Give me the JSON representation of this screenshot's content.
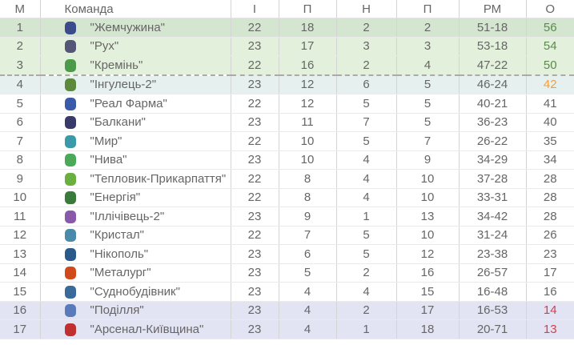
{
  "headers": [
    "М",
    "Команда",
    "І",
    "П",
    "Н",
    "П",
    "РМ",
    "О"
  ],
  "colors": {
    "champ": "#d5e6d0",
    "promo": "#e3f1dc",
    "playoff": "#e5f0ef",
    "releg": "#e2e3f3",
    "pts_green": "#5a8a4a",
    "pts_orange": "#f0a040",
    "pts_red": "#d04050"
  },
  "rows": [
    {
      "pos": "1",
      "team": "\"Жемчужина\"",
      "p": "22",
      "w": "18",
      "d": "2",
      "l": "2",
      "gd": "51-18",
      "pts": "56",
      "zone": "champ",
      "logo": "#3a4a8a"
    },
    {
      "pos": "2",
      "team": "\"Рух\"",
      "p": "23",
      "w": "17",
      "d": "3",
      "l": "3",
      "gd": "53-18",
      "pts": "54",
      "zone": "promo",
      "logo": "#555577"
    },
    {
      "pos": "3",
      "team": "\"Кремінь\"",
      "p": "22",
      "w": "16",
      "d": "2",
      "l": "4",
      "gd": "47-22",
      "pts": "50",
      "zone": "promo",
      "logo": "#4a9a4a"
    },
    {
      "pos": "4",
      "team": "\"Інгулець-2\"",
      "p": "23",
      "w": "12",
      "d": "6",
      "l": "5",
      "gd": "46-24",
      "pts": "42",
      "zone": "play",
      "logo": "#5a8a3a"
    },
    {
      "pos": "5",
      "team": "\"Реал Фарма\"",
      "p": "22",
      "w": "12",
      "d": "5",
      "l": "5",
      "gd": "40-21",
      "pts": "41",
      "zone": "",
      "logo": "#3a5aaa"
    },
    {
      "pos": "6",
      "team": "\"Балкани\"",
      "p": "23",
      "w": "11",
      "d": "7",
      "l": "5",
      "gd": "36-23",
      "pts": "40",
      "zone": "",
      "logo": "#3a3a6a"
    },
    {
      "pos": "7",
      "team": "\"Мир\"",
      "p": "22",
      "w": "10",
      "d": "5",
      "l": "7",
      "gd": "26-22",
      "pts": "35",
      "zone": "",
      "logo": "#3a9aaa"
    },
    {
      "pos": "8",
      "team": "\"Нива\"",
      "p": "23",
      "w": "10",
      "d": "4",
      "l": "9",
      "gd": "34-29",
      "pts": "34",
      "zone": "",
      "logo": "#4aaa5a"
    },
    {
      "pos": "9",
      "team": "\"Тепловик-Прикарпаття\"",
      "p": "22",
      "w": "8",
      "d": "4",
      "l": "10",
      "gd": "37-28",
      "pts": "28",
      "zone": "",
      "logo": "#6ab040"
    },
    {
      "pos": "10",
      "team": "\"Енергія\"",
      "p": "22",
      "w": "8",
      "d": "4",
      "l": "10",
      "gd": "33-31",
      "pts": "28",
      "zone": "",
      "logo": "#3a7a3a"
    },
    {
      "pos": "11",
      "team": "\"Іллічівець-2\"",
      "p": "23",
      "w": "9",
      "d": "1",
      "l": "13",
      "gd": "34-42",
      "pts": "28",
      "zone": "",
      "logo": "#8a5aaa"
    },
    {
      "pos": "12",
      "team": "\"Кристал\"",
      "p": "22",
      "w": "7",
      "d": "5",
      "l": "10",
      "gd": "31-24",
      "pts": "26",
      "zone": "",
      "logo": "#4a8aaa"
    },
    {
      "pos": "13",
      "team": "\"Нікополь\"",
      "p": "23",
      "w": "6",
      "d": "5",
      "l": "12",
      "gd": "23-38",
      "pts": "23",
      "zone": "",
      "logo": "#2a5a8a"
    },
    {
      "pos": "14",
      "team": "\"Металург\"",
      "p": "23",
      "w": "5",
      "d": "2",
      "l": "16",
      "gd": "26-57",
      "pts": "17",
      "zone": "",
      "logo": "#d04a1a"
    },
    {
      "pos": "15",
      "team": "\"Суднобудівник\"",
      "p": "23",
      "w": "4",
      "d": "4",
      "l": "15",
      "gd": "16-48",
      "pts": "16",
      "zone": "",
      "logo": "#3a6a9a"
    },
    {
      "pos": "16",
      "team": "\"Поділля\"",
      "p": "23",
      "w": "4",
      "d": "2",
      "l": "17",
      "gd": "16-53",
      "pts": "14",
      "zone": "releg",
      "logo": "#5a7aba"
    },
    {
      "pos": "17",
      "team": "\"Арсенал-Київщина\"",
      "p": "23",
      "w": "4",
      "d": "1",
      "l": "18",
      "gd": "20-71",
      "pts": "13",
      "zone": "releg",
      "logo": "#c03030"
    }
  ]
}
